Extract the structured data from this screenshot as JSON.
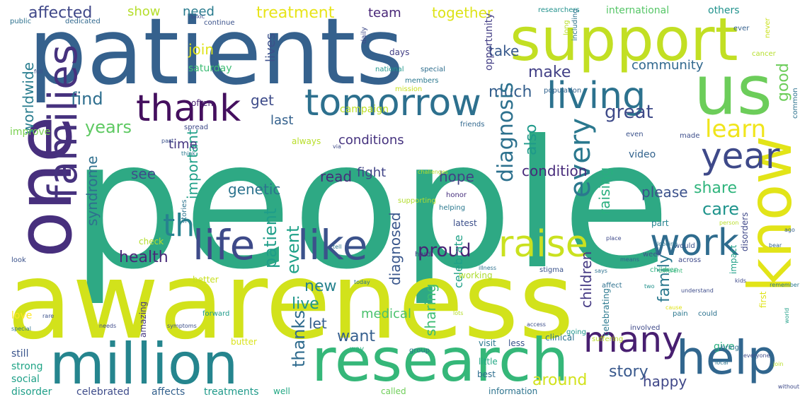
{
  "words": [
    {
      "text": "people",
      "color": "#2ea984"
    },
    {
      "text": "awareness",
      "color": "#d2e21b"
    },
    {
      "text": "patients",
      "color": "#35618d"
    },
    {
      "text": "support",
      "color": "#c2df23"
    },
    {
      "text": "one",
      "color": "#472f7d"
    },
    {
      "text": "us",
      "color": "#6ccd5a"
    },
    {
      "text": "research",
      "color": "#35b779"
    },
    {
      "text": "million",
      "color": "#25858e"
    },
    {
      "text": "know",
      "color": "#e2e418"
    },
    {
      "text": "tomorrow",
      "color": "#2d708e"
    },
    {
      "text": "thank",
      "color": "#440f5e"
    },
    {
      "text": "living",
      "color": "#2c728e"
    },
    {
      "text": "families",
      "color": "#46327e"
    },
    {
      "text": "life",
      "color": "#3e4a89"
    },
    {
      "text": "like",
      "color": "#3b528b"
    },
    {
      "text": "raise",
      "color": "#cae11f"
    },
    {
      "text": "help",
      "color": "#31668e"
    },
    {
      "text": "work",
      "color": "#2f6c8e"
    },
    {
      "text": "year",
      "color": "#3e4989"
    },
    {
      "text": "many",
      "color": "#481f70"
    },
    {
      "text": "th",
      "color": "#26828e"
    },
    {
      "text": "every",
      "color": "#2a788e"
    },
    {
      "text": "learn",
      "color": "#f0e51c"
    },
    {
      "text": "affected",
      "color": "#3f4788"
    },
    {
      "text": "treatment",
      "color": "#e7e419"
    },
    {
      "text": "show",
      "color": "#b5de2b"
    },
    {
      "text": "need",
      "color": "#297b8e"
    },
    {
      "text": "team",
      "color": "#482677"
    },
    {
      "text": "together",
      "color": "#dde318"
    },
    {
      "text": "join",
      "color": "#dfe318"
    },
    {
      "text": "find",
      "color": "#2e6e8e"
    },
    {
      "text": "years",
      "color": "#5ec962"
    },
    {
      "text": "make",
      "color": "#424086"
    },
    {
      "text": "much",
      "color": "#355f8d"
    },
    {
      "text": "great",
      "color": "#3e4a89"
    },
    {
      "text": "community",
      "color": "#31688e"
    },
    {
      "text": "get",
      "color": "#3e4c8a"
    },
    {
      "text": "last",
      "color": "#34618d"
    },
    {
      "text": "lives",
      "color": "#3c508b"
    },
    {
      "text": "take",
      "color": "#38598c"
    },
    {
      "text": "good",
      "color": "#6ccd5a"
    },
    {
      "text": "care",
      "color": "#1f948c"
    },
    {
      "text": "worldwide",
      "color": "#287c8e"
    },
    {
      "text": "syndrome",
      "color": "#2e6f8e"
    },
    {
      "text": "important",
      "color": "#1fa088"
    },
    {
      "text": "diagnosis",
      "color": "#2d718e"
    },
    {
      "text": "also",
      "color": "#1f998a"
    },
    {
      "text": "see",
      "color": "#3d4e8a"
    },
    {
      "text": "genetic",
      "color": "#2c738e"
    },
    {
      "text": "read",
      "color": "#472d7b"
    },
    {
      "text": "hope",
      "color": "#424186"
    },
    {
      "text": "share",
      "color": "#2fb47c"
    },
    {
      "text": "please",
      "color": "#3b518b"
    },
    {
      "text": "condition",
      "color": "#472a7a"
    },
    {
      "text": "raising",
      "color": "#29af7f"
    },
    {
      "text": "health",
      "color": "#482878"
    },
    {
      "text": "proud",
      "color": "#482475"
    },
    {
      "text": "patient",
      "color": "#1f9e89"
    },
    {
      "text": "event",
      "color": "#1fa188"
    },
    {
      "text": "new",
      "color": "#26828e"
    },
    {
      "text": "live",
      "color": "#1f968b"
    },
    {
      "text": "let",
      "color": "#355e8d"
    },
    {
      "text": "want",
      "color": "#355f8d"
    },
    {
      "text": "thanks",
      "color": "#2f6b8e"
    },
    {
      "text": "diagnosed",
      "color": "#39568c"
    },
    {
      "text": "sharing",
      "color": "#3dbc74"
    },
    {
      "text": "medical",
      "color": "#4ac16d"
    },
    {
      "text": "children",
      "color": "#443983"
    },
    {
      "text": "family",
      "color": "#2a788e"
    },
    {
      "text": "story",
      "color": "#38588c"
    },
    {
      "text": "around",
      "color": "#d2e21b"
    },
    {
      "text": "happy",
      "color": "#3f4788"
    },
    {
      "text": "time",
      "color": "#453781"
    },
    {
      "text": "conditions",
      "color": "#46337f"
    },
    {
      "text": "celebrate",
      "color": "#1fa187"
    },
    {
      "text": "fight",
      "color": "#414487"
    },
    {
      "text": "improve",
      "color": "#7ad151"
    },
    {
      "text": "saturday",
      "color": "#3dbc74"
    },
    {
      "text": "campaign",
      "color": "#bddf26"
    },
    {
      "text": "always",
      "color": "#b8de29"
    },
    {
      "text": "international",
      "color": "#56c667"
    },
    {
      "text": "others",
      "color": "#20928c"
    },
    {
      "text": "opportunity",
      "color": "#433e85"
    },
    {
      "text": "continue",
      "color": "#3b528b"
    },
    {
      "text": "better",
      "color": "#c8e020"
    },
    {
      "text": "butter",
      "color": "#dae319"
    },
    {
      "text": "love",
      "color": "#fde725"
    },
    {
      "text": "still",
      "color": "#3a548c"
    },
    {
      "text": "strong",
      "color": "#20a486"
    },
    {
      "text": "social",
      "color": "#1fa088"
    },
    {
      "text": "disorder",
      "color": "#1f9f88"
    },
    {
      "text": "celebrated",
      "color": "#3e4c8a"
    },
    {
      "text": "affects",
      "color": "#34618d"
    },
    {
      "text": "treatments",
      "color": "#1f9a8a"
    },
    {
      "text": "amazing",
      "color": "#453882"
    },
    {
      "text": "well",
      "color": "#22a884"
    },
    {
      "text": "called",
      "color": "#6ece58"
    },
    {
      "text": "information",
      "color": "#2c738e"
    },
    {
      "text": "give",
      "color": "#2ab07f"
    },
    {
      "text": "visit",
      "color": "#2a788e"
    },
    {
      "text": "working",
      "color": "#addc30"
    },
    {
      "text": "video",
      "color": "#33638d"
    },
    {
      "text": "days",
      "color": "#423f85"
    },
    {
      "text": "often",
      "color": "#482071"
    },
    {
      "text": "check",
      "color": "#b5de2b"
    },
    {
      "text": "latest",
      "color": "#3c4f8a"
    },
    {
      "text": "part",
      "color": "#25838e"
    },
    {
      "text": "impact",
      "color": "#1fa088"
    },
    {
      "text": "first",
      "color": "#dfe318"
    },
    {
      "text": "look",
      "color": "#3b528b"
    },
    {
      "text": "clinical",
      "color": "#2c728e"
    },
    {
      "text": "little",
      "color": "#22a884"
    },
    {
      "text": "best",
      "color": "#2e6e8e"
    },
    {
      "text": "less",
      "color": "#3a548c"
    },
    {
      "text": "way",
      "color": "#29af7f"
    },
    {
      "text": "group",
      "color": "#2a788e"
    },
    {
      "text": "going",
      "color": "#1f968b"
    },
    {
      "text": "celebrating",
      "color": "#2a788e"
    },
    {
      "text": "bring",
      "color": "#2c728e"
    },
    {
      "text": "forward",
      "color": "#1e9b8a"
    },
    {
      "text": "across",
      "color": "#3e4989"
    },
    {
      "text": "disorders",
      "color": "#3f4889"
    },
    {
      "text": "supporting",
      "color": "#b2dd2d"
    },
    {
      "text": "affect",
      "color": "#2d708e"
    },
    {
      "text": "week",
      "color": "#3c4f8a"
    },
    {
      "text": "would",
      "color": "#3a548c"
    },
    {
      "text": "honor",
      "color": "#472f7d"
    },
    {
      "text": "helping",
      "color": "#2a788e"
    },
    {
      "text": "stories",
      "color": "#2c738e"
    },
    {
      "text": "spread",
      "color": "#3e4a89"
    },
    {
      "text": "friends",
      "color": "#31688e"
    },
    {
      "text": "special",
      "color": "#2e6e8e"
    },
    {
      "text": "population",
      "color": "#33638d"
    },
    {
      "text": "researchers",
      "color": "#21918c"
    },
    {
      "text": "never",
      "color": "#cae11f"
    },
    {
      "text": "common",
      "color": "#2c728e"
    },
    {
      "text": "including",
      "color": "#2c738e"
    },
    {
      "text": "members",
      "color": "#2a788e"
    },
    {
      "text": "involved",
      "color": "#3e4989"
    },
    {
      "text": "pain",
      "color": "#2a778e"
    },
    {
      "text": "cancer",
      "color": "#b5de2b"
    },
    {
      "text": "hard",
      "color": "#433e85"
    },
    {
      "text": "national",
      "color": "#1f968b"
    },
    {
      "text": "daily",
      "color": "#3e4a89"
    },
    {
      "text": "suffering",
      "color": "#bddf26"
    },
    {
      "text": "ever",
      "color": "#35608d"
    },
    {
      "text": "even",
      "color": "#3b528b"
    },
    {
      "text": "public",
      "color": "#2d718e"
    },
    {
      "text": "dedicated",
      "color": "#31688e"
    },
    {
      "text": "full",
      "color": "#3c4f8a"
    },
    {
      "text": "long",
      "color": "#b8de29"
    },
    {
      "text": "mission",
      "color": "#c8e020"
    },
    {
      "text": "toxic",
      "color": "#3e4c8a"
    },
    {
      "text": "made",
      "color": "#3d4e8a"
    },
    {
      "text": "stigma",
      "color": "#3b528b"
    },
    {
      "text": "children",
      "color": "#2ab07f"
    },
    {
      "text": "special",
      "color": "#2c728e"
    },
    {
      "text": "rare",
      "color": "#3b518b"
    },
    {
      "text": "needs",
      "color": "#3e4a89"
    },
    {
      "text": "symptoms",
      "color": "#3c4f8a"
    },
    {
      "text": "could",
      "color": "#2c728e"
    },
    {
      "text": "person",
      "color": "#b8de29"
    },
    {
      "text": "world",
      "color": "#1f9f88"
    },
    {
      "text": "understand",
      "color": "#3e4c8a"
    },
    {
      "text": "bear",
      "color": "#33638d"
    },
    {
      "text": "ago",
      "color": "#35608d"
    },
    {
      "text": "tell",
      "color": "#2c728e"
    },
    {
      "text": "two",
      "color": "#21918c"
    },
    {
      "text": "different",
      "color": "#35b779"
    },
    {
      "text": "cause",
      "color": "#dfe318"
    },
    {
      "text": "place",
      "color": "#3e4989"
    },
    {
      "text": "looking",
      "color": "#2c738e"
    },
    {
      "text": "challenges",
      "color": "#b5de2b"
    },
    {
      "text": "illness",
      "color": "#2d718e"
    },
    {
      "text": "past",
      "color": "#3b528b"
    },
    {
      "text": "think",
      "color": "#2a788e"
    },
    {
      "text": "via",
      "color": "#3e4a89"
    },
    {
      "text": "today",
      "color": "#2c728e"
    },
    {
      "text": "lots",
      "color": "#b5de2b"
    },
    {
      "text": "kids",
      "color": "#3e4989"
    },
    {
      "text": "says",
      "color": "#2d718e"
    },
    {
      "text": "means",
      "color": "#33638d"
    },
    {
      "text": "local",
      "color": "#2c738e"
    },
    {
      "text": "everyone",
      "color": "#3e4c8a"
    },
    {
      "text": "join",
      "color": "#b8de29"
    },
    {
      "text": "access",
      "color": "#3c4f8a"
    },
    {
      "text": "remember",
      "color": "#2a788e"
    },
    {
      "text": "without",
      "color": "#3e4a89"
    },
    {
      "text": "advocate",
      "color": "#2d718e"
    },
    {
      "text": "thanks",
      "color": "#3b528b"
    },
    {
      "text": "aware",
      "color": "#35608d"
    },
    {
      "text": "focus",
      "color": "#3e4989"
    },
    {
      "text": "fund",
      "color": "#2c728e"
    },
    {
      "text": "young",
      "color": "#b5de2b"
    },
    {
      "text": "experience",
      "color": "#b8de29"
    }
  ]
}
